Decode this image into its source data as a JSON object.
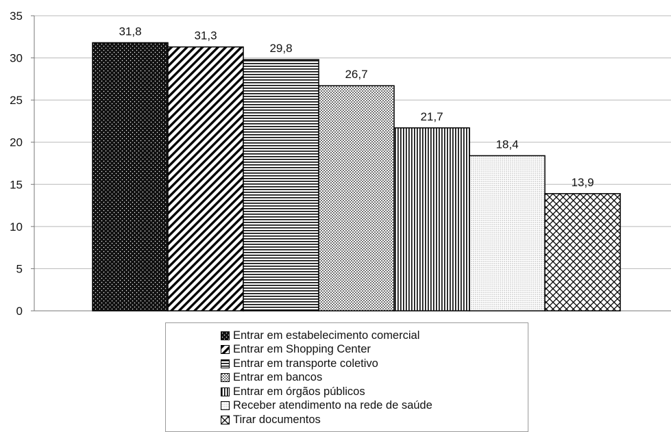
{
  "chart_data": {
    "type": "bar",
    "categories": [
      "Entrar em estabelecimento comercial",
      "Entrar em Shopping Center",
      "Entrar em transporte coletivo",
      "Entrar em bancos",
      "Entrar em órgãos públicos",
      "Receber atendimento na rede de saúde",
      "Tirar documentos"
    ],
    "values": [
      31.8,
      31.3,
      29.8,
      26.7,
      21.7,
      18.4,
      13.9
    ],
    "value_labels": [
      "31,8",
      "31,3",
      "29,8",
      "26,7",
      "21,7",
      "18,4",
      "13,9"
    ],
    "y_ticks": [
      "0",
      "5",
      "10",
      "15",
      "20",
      "25",
      "30",
      "35"
    ],
    "ylim": [
      0,
      35
    ],
    "title": "",
    "xlabel": "",
    "ylabel": "",
    "grid": true,
    "legend_position": "bottom",
    "patterns": [
      "dark-dots",
      "diagonal-stripes",
      "horizontal-stripes",
      "dense-dots",
      "vertical-stripes",
      "light-dots",
      "diagonal-crosshatch"
    ]
  }
}
